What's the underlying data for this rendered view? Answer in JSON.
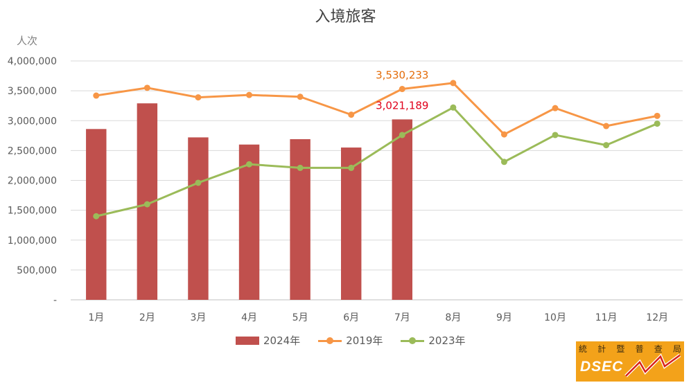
{
  "chart_data": {
    "type": "bar+line",
    "title": "入境旅客",
    "ylabel": "人次",
    "xlabel": "",
    "ylim": [
      0,
      4000000
    ],
    "yticks": [
      0,
      500000,
      1000000,
      1500000,
      2000000,
      2500000,
      3000000,
      3500000,
      4000000
    ],
    "ytick_labels": [
      "-",
      "500,000",
      "1,000,000",
      "1,500,000",
      "2,000,000",
      "2,500,000",
      "3,000,000",
      "3,500,000",
      "4,000,000"
    ],
    "categories": [
      "1月",
      "2月",
      "3月",
      "4月",
      "5月",
      "6月",
      "7月",
      "8月",
      "9月",
      "10月",
      "11月",
      "12月"
    ],
    "grid": true,
    "legend_position": "bottom",
    "series": [
      {
        "name": "2024年",
        "kind": "bar",
        "color": "#c0504d",
        "values": [
          2860000,
          3290000,
          2720000,
          2600000,
          2690000,
          2550000,
          3021189,
          null,
          null,
          null,
          null,
          null
        ]
      },
      {
        "name": "2019年",
        "kind": "line",
        "color": "#f79646",
        "values": [
          3420000,
          3550000,
          3390000,
          3430000,
          3400000,
          3100000,
          3530233,
          3630000,
          2770000,
          3210000,
          2910000,
          3080000
        ]
      },
      {
        "name": "2023年",
        "kind": "line",
        "color": "#9bbb59",
        "values": [
          1400000,
          1600000,
          1960000,
          2270000,
          2210000,
          2210000,
          2760000,
          3220000,
          2310000,
          2760000,
          2590000,
          2950000
        ]
      }
    ],
    "annotations": [
      {
        "text": "3,530,233",
        "series": "2019年",
        "category": "7月",
        "color": "#e36c09"
      },
      {
        "text": "3,021,189",
        "series": "2024年",
        "category": "7月",
        "color": "#e0001b"
      }
    ]
  },
  "logo": {
    "chars": [
      "統",
      "計",
      "暨",
      "普",
      "查",
      "局"
    ],
    "text": "DSEC"
  }
}
